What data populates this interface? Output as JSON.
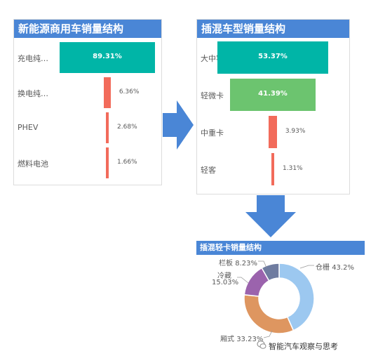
{
  "chart_data": [
    {
      "type": "bar",
      "orientation": "funnel",
      "title": "新能源商用车销量结构",
      "categories": [
        "充电纯…",
        "换电纯…",
        "PHEV",
        "燃料电池"
      ],
      "values": [
        89.31,
        6.36,
        2.68,
        1.66
      ],
      "value_labels": [
        "89.31%",
        "6.36%",
        "2.68%",
        "1.66%"
      ],
      "colors": [
        "#00b5a7",
        "#f26b5b",
        "#f26b5b",
        "#f26b5b"
      ]
    },
    {
      "type": "bar",
      "orientation": "funnel",
      "title": "插混车型销量结构",
      "categories": [
        "大中客",
        "轻微卡",
        "中重卡",
        "轻客"
      ],
      "values": [
        53.37,
        41.39,
        3.93,
        1.31
      ],
      "value_labels": [
        "53.37%",
        "41.39%",
        "3.93%",
        "1.31%"
      ],
      "colors": [
        "#00b5a7",
        "#6cc46f",
        "#f26b5b",
        "#f26b5b"
      ]
    },
    {
      "type": "pie",
      "donut": true,
      "title": "插混轻卡销量结构",
      "categories": [
        "仓栅",
        "厢式",
        "冷藏",
        "栏板"
      ],
      "values": [
        43.2,
        33.23,
        15.03,
        8.23
      ],
      "value_labels": [
        "43.2%",
        "33.23%",
        "15.03%",
        "8.23%"
      ],
      "colors": [
        "#9cc8f0",
        "#de9660",
        "#9b63ad",
        "#6f7ca0"
      ]
    }
  ],
  "watermark": "智能汽车观察与思考",
  "arrow_color": "#4a86d6"
}
